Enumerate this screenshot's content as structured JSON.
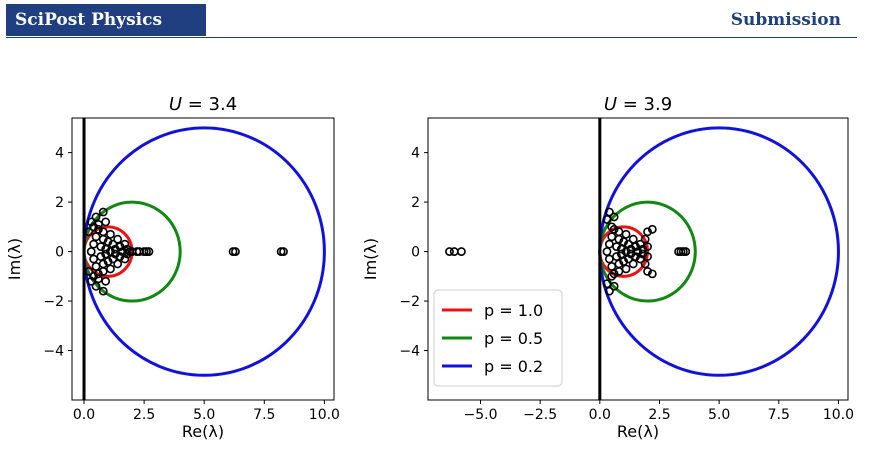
{
  "header": {
    "journal": "SciPost Physics",
    "label": "Submission"
  },
  "colors": {
    "brand": "#1f3f80",
    "p1": "#ee1111",
    "p05": "#118811",
    "p02": "#1111dd"
  },
  "chart_data": [
    {
      "type": "scatter",
      "title_var": "U",
      "title_value": "= 3.4",
      "xlabel": "Re(λ)",
      "ylabel": "Im(λ)",
      "xlim": [
        -0.5,
        10.4
      ],
      "ylim": [
        -6.0,
        5.4
      ],
      "xticks": [
        0.0,
        2.5,
        5.0,
        7.5,
        10.0
      ],
      "xtick_labels": [
        "0.0",
        "2.5",
        "5.0",
        "7.5",
        "10.0"
      ],
      "yticks": [
        -4,
        -2,
        0,
        2,
        4
      ],
      "ytick_labels": [
        "−4",
        "−2",
        "0",
        "2",
        "4"
      ],
      "vertical_line_x": 0,
      "circles": [
        {
          "p": 1.0,
          "center": 1,
          "radius": 1,
          "color": "#ee1111"
        },
        {
          "p": 0.5,
          "center": 2,
          "radius": 2,
          "color": "#118811"
        },
        {
          "p": 0.2,
          "center": 5,
          "radius": 5,
          "color": "#1111dd"
        }
      ],
      "points": [
        [
          0.3,
          0
        ],
        [
          0.4,
          0.3
        ],
        [
          0.4,
          -0.3
        ],
        [
          0.5,
          0.6
        ],
        [
          0.5,
          -0.6
        ],
        [
          0.6,
          0.9
        ],
        [
          0.6,
          -0.9
        ],
        [
          0.7,
          0.2
        ],
        [
          0.7,
          -0.2
        ],
        [
          0.8,
          0.5
        ],
        [
          0.8,
          -0.5
        ],
        [
          0.8,
          0.8
        ],
        [
          0.8,
          -0.8
        ],
        [
          0.9,
          0.1
        ],
        [
          0.9,
          -0.1
        ],
        [
          1.0,
          0.4
        ],
        [
          1.0,
          -0.4
        ],
        [
          1.1,
          0
        ],
        [
          1.1,
          0.7
        ],
        [
          1.1,
          -0.7
        ],
        [
          1.2,
          0.3
        ],
        [
          1.2,
          -0.3
        ],
        [
          1.3,
          0.1
        ],
        [
          1.3,
          -0.1
        ],
        [
          1.4,
          0.5
        ],
        [
          1.4,
          -0.5
        ],
        [
          1.5,
          0.2
        ],
        [
          1.5,
          -0.2
        ],
        [
          1.6,
          0
        ],
        [
          1.7,
          0.3
        ],
        [
          1.7,
          -0.3
        ],
        [
          1.8,
          0.1
        ],
        [
          1.8,
          -0.1
        ],
        [
          1.9,
          0
        ],
        [
          2.0,
          0
        ],
        [
          2.2,
          0
        ],
        [
          2.3,
          0
        ],
        [
          2.5,
          0
        ],
        [
          2.6,
          0
        ],
        [
          2.7,
          0
        ],
        [
          0.4,
          1.0
        ],
        [
          0.4,
          -1.0
        ],
        [
          0.5,
          1.4
        ],
        [
          0.5,
          -1.4
        ],
        [
          0.3,
          1.2
        ],
        [
          0.3,
          -1.2
        ],
        [
          0.2,
          0.8
        ],
        [
          0.2,
          -0.8
        ],
        [
          0.8,
          1.6
        ],
        [
          0.8,
          -1.6
        ],
        [
          0.9,
          1.2
        ],
        [
          0.9,
          -1.2
        ],
        [
          0.6,
          1.1
        ],
        [
          0.6,
          -1.1
        ],
        [
          6.2,
          0
        ],
        [
          6.3,
          0
        ],
        [
          8.2,
          0
        ],
        [
          8.3,
          0
        ]
      ]
    },
    {
      "type": "scatter",
      "title_var": "U",
      "title_value": "= 3.9",
      "xlabel": "Re(λ)",
      "ylabel": "Im(λ)",
      "xlim": [
        -7.2,
        10.4
      ],
      "ylim": [
        -6.0,
        5.4
      ],
      "xticks": [
        -5.0,
        -2.5,
        0.0,
        2.5,
        5.0,
        7.5,
        10.0
      ],
      "xtick_labels": [
        "−5.0",
        "−2.5",
        "0.0",
        "2.5",
        "5.0",
        "7.5",
        "10.0"
      ],
      "yticks": [
        -4,
        -2,
        0,
        2,
        4
      ],
      "ytick_labels": [
        "−4",
        "−2",
        "0",
        "2",
        "4"
      ],
      "vertical_line_x": 0,
      "legend_position": "lower-left",
      "legend": [
        {
          "label": "p = 1.0",
          "color": "#ee1111"
        },
        {
          "label": "p = 0.5",
          "color": "#118811"
        },
        {
          "label": "p = 0.2",
          "color": "#1111dd"
        }
      ],
      "circles": [
        {
          "p": 1.0,
          "center": 1,
          "radius": 1,
          "color": "#ee1111"
        },
        {
          "p": 0.5,
          "center": 2,
          "radius": 2,
          "color": "#118811"
        },
        {
          "p": 0.2,
          "center": 5,
          "radius": 5,
          "color": "#1111dd"
        }
      ],
      "points": [
        [
          0.3,
          0
        ],
        [
          0.4,
          0.3
        ],
        [
          0.4,
          -0.3
        ],
        [
          0.5,
          0.6
        ],
        [
          0.5,
          -0.6
        ],
        [
          0.6,
          0.9
        ],
        [
          0.6,
          -0.9
        ],
        [
          0.7,
          0.2
        ],
        [
          0.7,
          -0.2
        ],
        [
          0.8,
          0.5
        ],
        [
          0.8,
          -0.5
        ],
        [
          0.8,
          0.8
        ],
        [
          0.8,
          -0.8
        ],
        [
          0.9,
          0.1
        ],
        [
          0.9,
          -0.1
        ],
        [
          1.0,
          0.4
        ],
        [
          1.0,
          -0.4
        ],
        [
          1.1,
          0
        ],
        [
          1.1,
          0.7
        ],
        [
          1.1,
          -0.7
        ],
        [
          1.2,
          0.3
        ],
        [
          1.2,
          -0.3
        ],
        [
          1.3,
          0.1
        ],
        [
          1.3,
          -0.1
        ],
        [
          1.4,
          0.5
        ],
        [
          1.4,
          -0.5
        ],
        [
          1.5,
          0.2
        ],
        [
          1.5,
          -0.2
        ],
        [
          1.6,
          0
        ],
        [
          1.7,
          0.3
        ],
        [
          1.7,
          -0.3
        ],
        [
          1.8,
          0.1
        ],
        [
          1.8,
          -0.1
        ],
        [
          0.3,
          1.3
        ],
        [
          0.3,
          -1.3
        ],
        [
          0.4,
          1.6
        ],
        [
          0.4,
          -1.6
        ],
        [
          0.5,
          1.0
        ],
        [
          0.5,
          -1.0
        ],
        [
          0.6,
          1.4
        ],
        [
          0.6,
          -1.4
        ],
        [
          1.9,
          0.5
        ],
        [
          1.9,
          -0.5
        ],
        [
          2.0,
          0.8
        ],
        [
          2.0,
          -0.8
        ],
        [
          2.2,
          0.9
        ],
        [
          2.2,
          -0.9
        ],
        [
          2.0,
          0.2
        ],
        [
          2.0,
          -0.2
        ],
        [
          3.3,
          0
        ],
        [
          3.4,
          0
        ],
        [
          3.5,
          0
        ],
        [
          3.6,
          0
        ],
        [
          -6.3,
          0
        ],
        [
          -6.1,
          0
        ],
        [
          -5.8,
          0
        ]
      ]
    }
  ]
}
